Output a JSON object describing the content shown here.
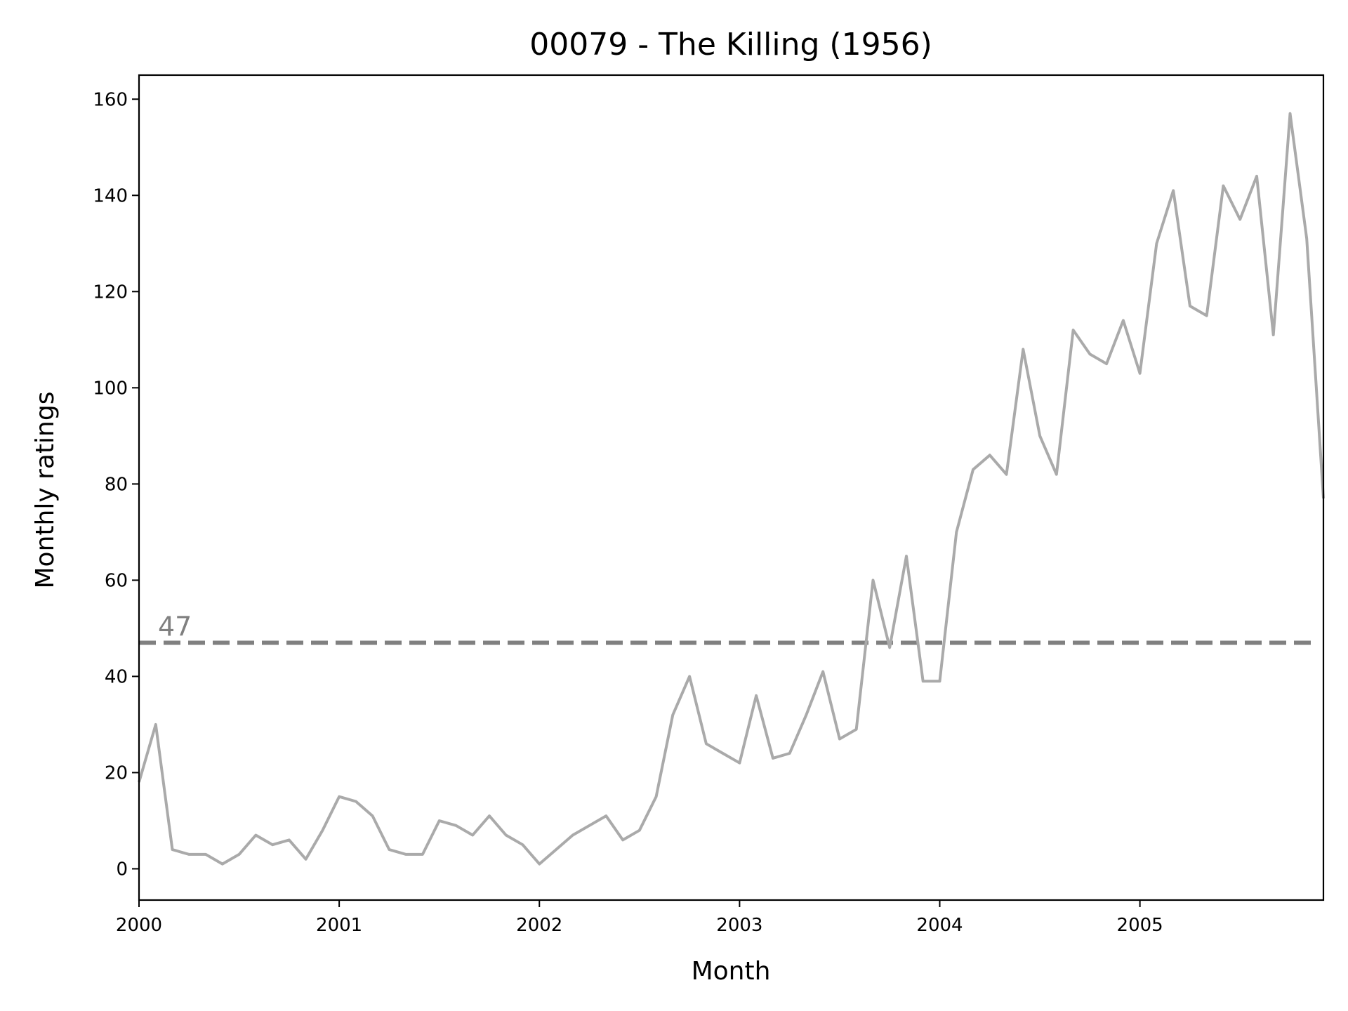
{
  "chart_data": {
    "type": "line",
    "title": "00079 - The Killing (1956)",
    "xlabel": "Month",
    "ylabel": "Monthly ratings",
    "x_start": "2000-01",
    "x_end": "2005-12",
    "xlim": [
      "2000-01",
      "2005-12"
    ],
    "ylim": [
      -6.5,
      165
    ],
    "x_ticks": [
      {
        "label": "2000",
        "month": "2000-01"
      },
      {
        "label": "2001",
        "month": "2001-01"
      },
      {
        "label": "2002",
        "month": "2002-01"
      },
      {
        "label": "2003",
        "month": "2003-01"
      },
      {
        "label": "2004",
        "month": "2004-01"
      },
      {
        "label": "2005",
        "month": "2005-01"
      }
    ],
    "y_ticks": [
      {
        "label": "0",
        "value": 0
      },
      {
        "label": "20",
        "value": 20
      },
      {
        "label": "40",
        "value": 40
      },
      {
        "label": "60",
        "value": 60
      },
      {
        "label": "80",
        "value": 80
      },
      {
        "label": "100",
        "value": 100
      },
      {
        "label": "120",
        "value": 120
      },
      {
        "label": "140",
        "value": 140
      },
      {
        "label": "160",
        "value": 160
      }
    ],
    "grid": false,
    "series": [
      {
        "color": "#aaaaaa",
        "values": [
          18,
          30,
          4,
          3,
          3,
          1,
          3,
          7,
          5,
          6,
          2,
          8,
          15,
          14,
          11,
          4,
          3,
          3,
          10,
          9,
          7,
          11,
          7,
          5,
          1,
          4,
          7,
          9,
          11,
          6,
          8,
          15,
          32,
          40,
          26,
          24,
          22,
          36,
          23,
          24,
          32,
          41,
          27,
          29,
          60,
          46,
          65,
          39,
          39,
          70,
          83,
          86,
          82,
          108,
          90,
          82,
          112,
          107,
          105,
          114,
          103,
          130,
          141,
          117,
          115,
          142,
          135,
          144,
          111,
          157,
          131,
          77
        ]
      }
    ],
    "reference_line": {
      "value": 47,
      "label": "47",
      "color": "#808080",
      "style": "dashed"
    }
  }
}
